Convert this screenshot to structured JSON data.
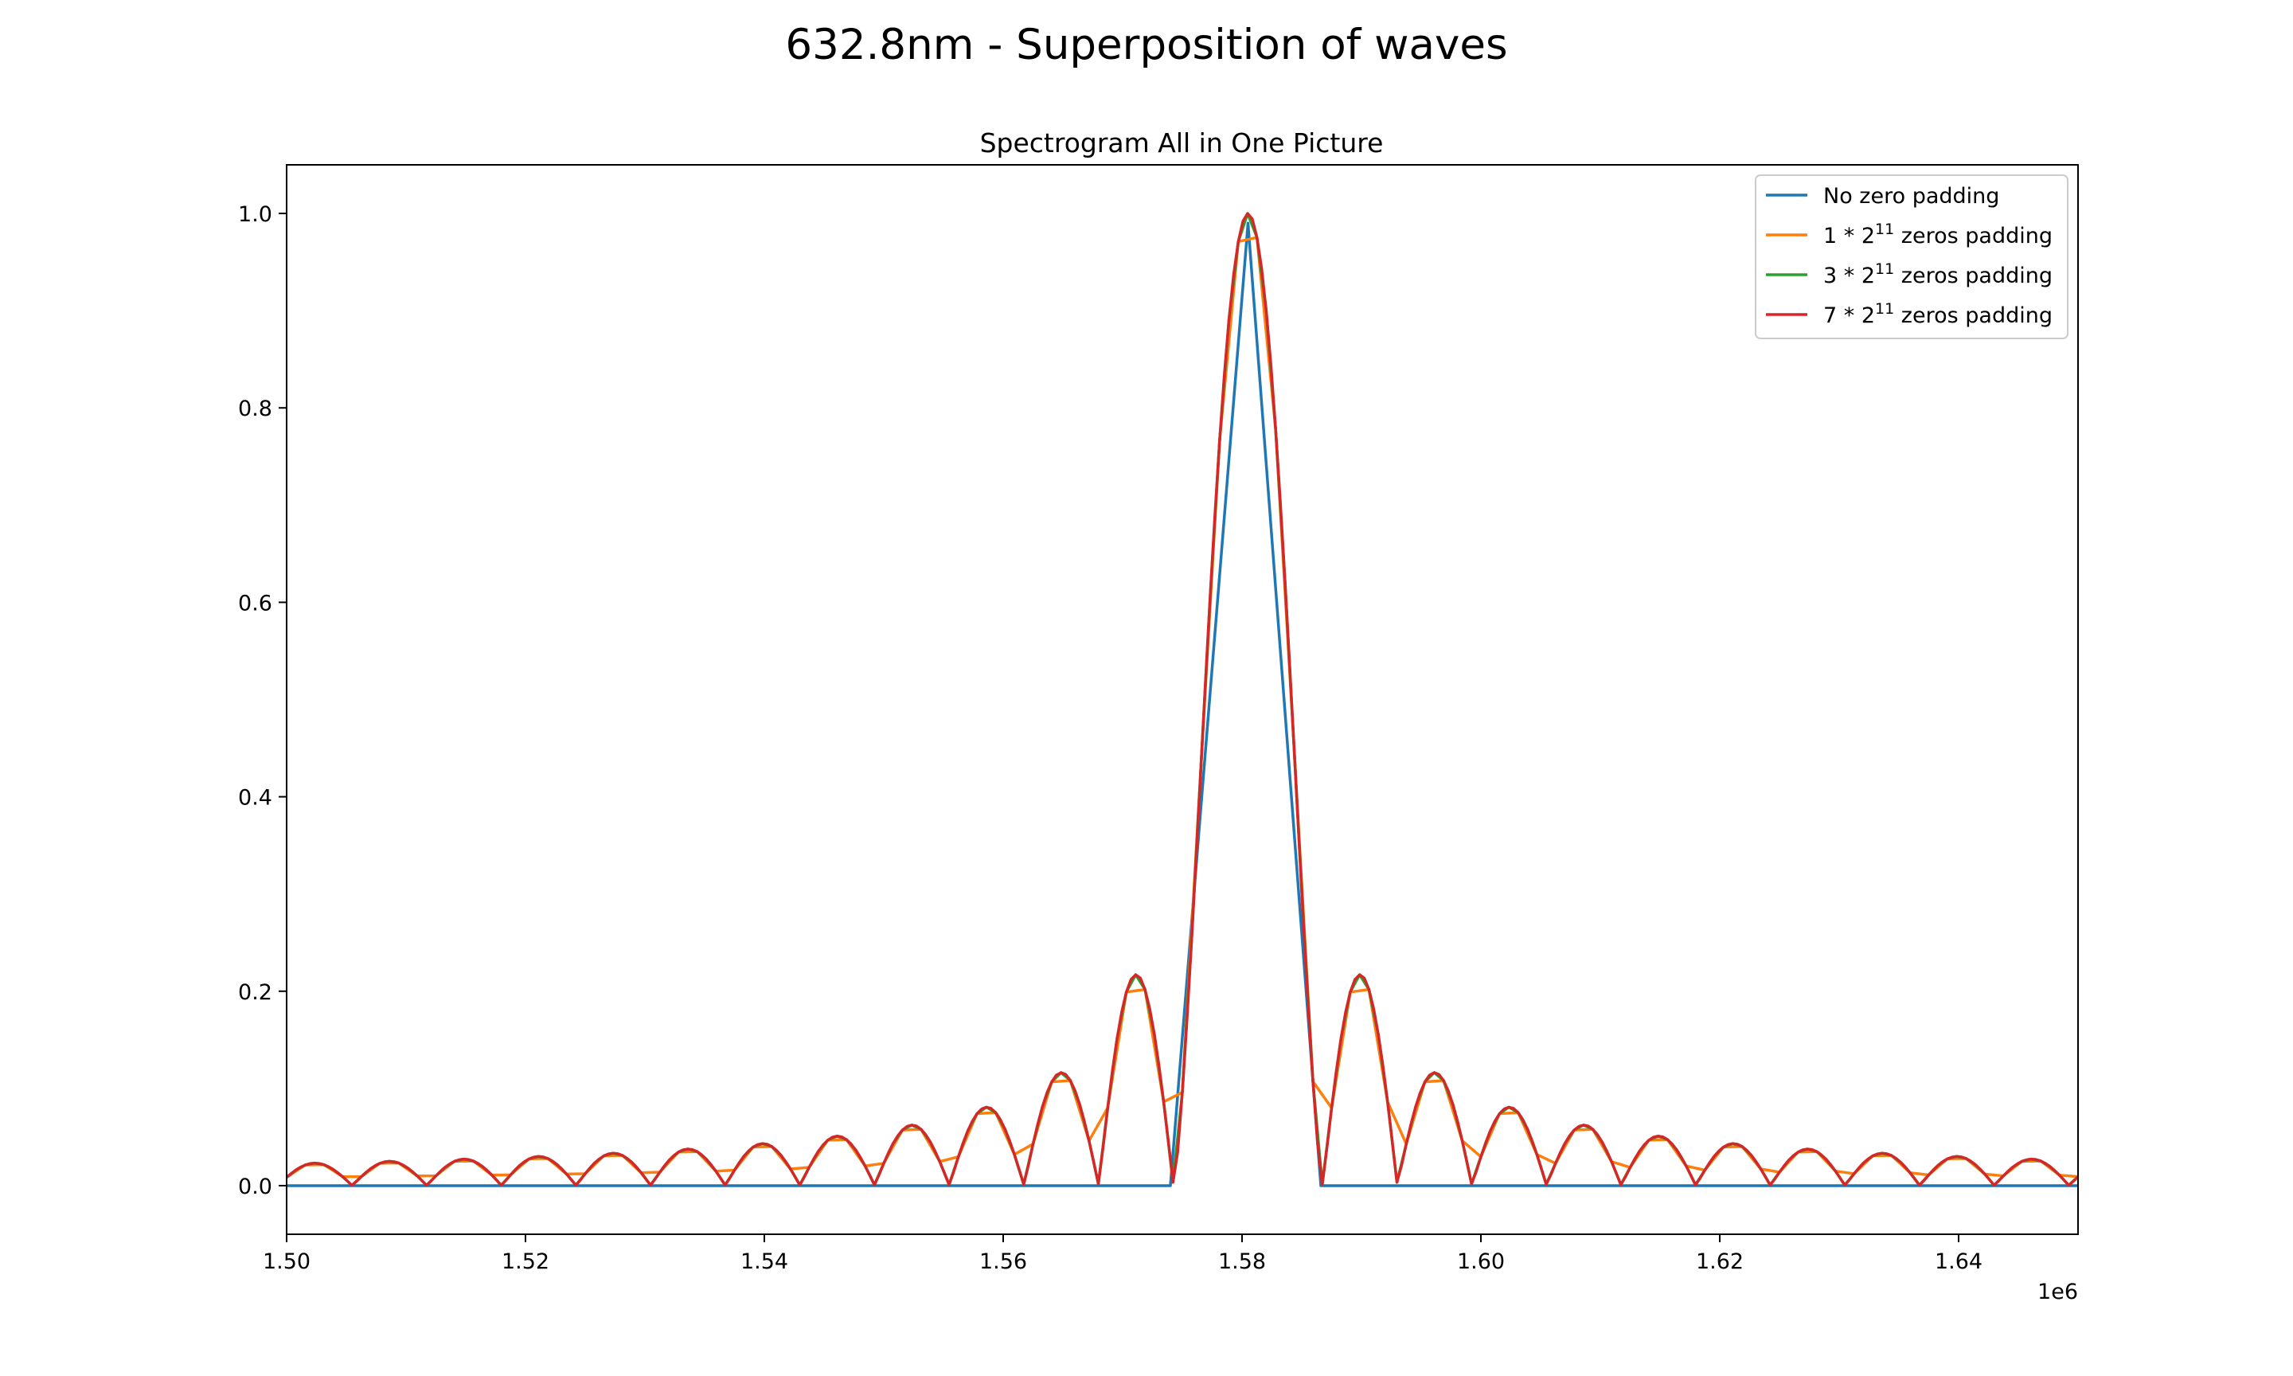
{
  "figure": {
    "suptitle": "632.8nm - Superposition of waves"
  },
  "chart_data": {
    "type": "line",
    "title": "Spectrogram All in One Picture",
    "xlabel": "",
    "ylabel": "",
    "x_offset_label": "1e6",
    "xlim": [
      1.5,
      1.65
    ],
    "ylim": [
      -0.05,
      1.05
    ],
    "x_ticks": [
      1.5,
      1.52,
      1.54,
      1.56,
      1.58,
      1.6,
      1.62,
      1.64
    ],
    "x_tick_labels": [
      "1.50",
      "1.52",
      "1.54",
      "1.56",
      "1.58",
      "1.60",
      "1.62",
      "1.64"
    ],
    "y_ticks": [
      0.0,
      0.2,
      0.4,
      0.6,
      0.8,
      1.0
    ],
    "y_tick_labels": [
      "0.0",
      "0.2",
      "0.4",
      "0.6",
      "0.8",
      "1.0"
    ],
    "legend_position": "top-right",
    "grid": false,
    "signal": {
      "center": 1.5805,
      "main_lobe_half_width": 0.00625,
      "first_sidelobe": 0.217,
      "sidelobe_decay": 0.9,
      "left_last_null": 1.5
    },
    "series": [
      {
        "name": "No zero padding",
        "legend_prefix": "No zero padding",
        "legend_base": "",
        "legend_exponent": "",
        "legend_suffix": "",
        "color": "#1f77b4",
        "sampling": "critical",
        "points": [
          [
            1.5,
            0
          ],
          [
            1.574,
            0
          ],
          [
            1.5805,
            0.99
          ],
          [
            1.5866,
            0
          ],
          [
            1.65,
            0
          ]
        ]
      },
      {
        "name": "1*2^11 zeros padding",
        "legend_prefix": "1 * 2",
        "legend_base": "",
        "legend_exponent": "11",
        "legend_suffix": " zeros padding",
        "color": "#ff7f0e",
        "sampling": "2x"
      },
      {
        "name": "3*2^11 zeros padding",
        "legend_prefix": "3 * 2",
        "legend_base": "",
        "legend_exponent": "11",
        "legend_suffix": " zeros padding",
        "color": "#2ca02c",
        "sampling": "4x"
      },
      {
        "name": "7*2^11 zeros padding",
        "legend_prefix": "7 * 2",
        "legend_base": "",
        "legend_exponent": "11",
        "legend_suffix": " zeros padding",
        "color": "#d62728",
        "sampling": "8x"
      }
    ]
  }
}
